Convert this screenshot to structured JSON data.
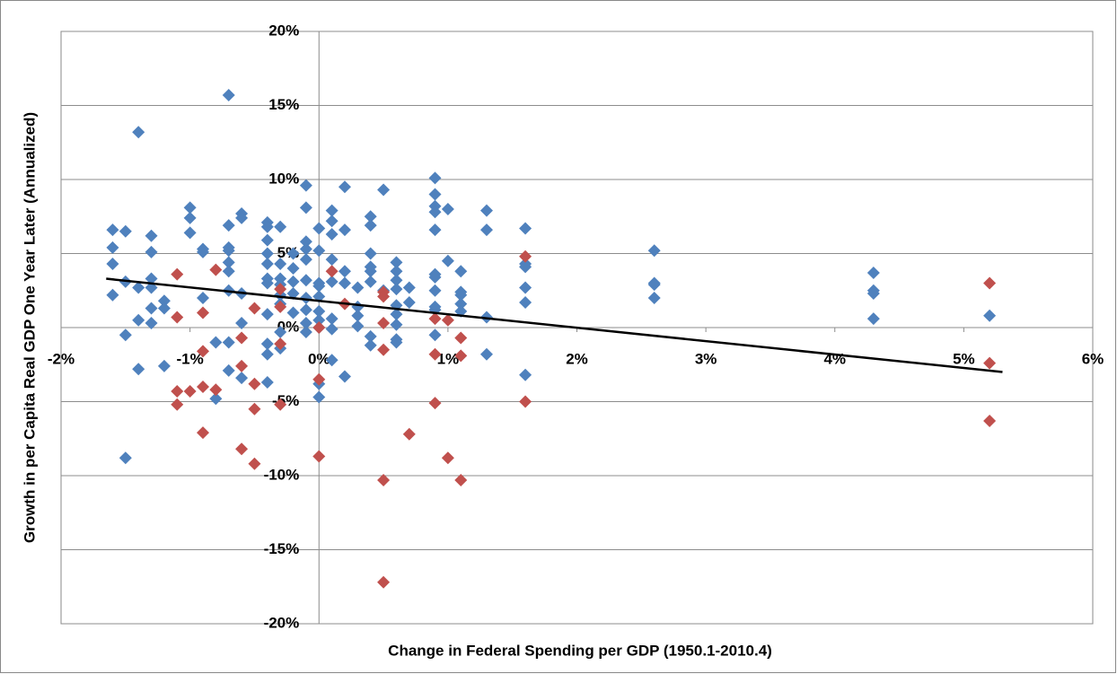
{
  "chart_data": {
    "type": "scatter",
    "x_label": "Change in Federal Spending per GDP (1950.1-2010.4)",
    "y_label": "Growth in per Capita Real GDP One Year Later (Annualized)",
    "xlim": [
      -2,
      6
    ],
    "ylim": [
      -20,
      20
    ],
    "xticks": [
      {
        "value": -2,
        "label": "-2%"
      },
      {
        "value": -1,
        "label": "-1%"
      },
      {
        "value": 0,
        "label": "0%"
      },
      {
        "value": 1,
        "label": "1%"
      },
      {
        "value": 2,
        "label": "2%"
      },
      {
        "value": 3,
        "label": "3%"
      },
      {
        "value": 4,
        "label": "4%"
      },
      {
        "value": 5,
        "label": "5%"
      },
      {
        "value": 6,
        "label": "6%"
      }
    ],
    "yticks": [
      {
        "value": -20,
        "label": "-20%"
      },
      {
        "value": -15,
        "label": "-15%"
      },
      {
        "value": -10,
        "label": "-10%"
      },
      {
        "value": -5,
        "label": "-5%"
      },
      {
        "value": 0,
        "label": "0%"
      },
      {
        "value": 5,
        "label": "5%"
      },
      {
        "value": 10,
        "label": "10%"
      },
      {
        "value": 15,
        "label": "15%"
      },
      {
        "value": 20,
        "label": "20%"
      }
    ],
    "grid": true,
    "series": [
      {
        "color": "#4f81bd",
        "x": [
          -1.6,
          -1.6,
          -1.6,
          -1.6,
          -1.5,
          -1.5,
          -1.5,
          -1.5,
          -1.4,
          -1.4,
          -1.4,
          -1.4,
          -1.3,
          -1.3,
          -1.3,
          -1.3,
          -1.3,
          -1.3,
          -1.2,
          -1.2,
          -1.2,
          -1.0,
          -1.0,
          -1.0,
          -0.9,
          -0.9,
          -0.9,
          -0.8,
          -0.8,
          -0.7,
          -0.7,
          -0.7,
          -0.7,
          -0.7,
          -0.7,
          -0.7,
          -0.7,
          -0.7,
          -0.6,
          -0.6,
          -0.6,
          -0.6,
          -0.6,
          -0.4,
          -0.4,
          -0.4,
          -0.4,
          -0.4,
          -0.4,
          -0.4,
          -0.4,
          -0.4,
          -0.4,
          -0.4,
          -0.3,
          -0.3,
          -0.3,
          -0.3,
          -0.3,
          -0.3,
          -0.3,
          -0.3,
          -0.2,
          -0.2,
          -0.2,
          -0.2,
          -0.2,
          -0.1,
          -0.1,
          -0.1,
          -0.1,
          -0.1,
          -0.1,
          -0.1,
          -0.1,
          -0.1,
          -0.1,
          0.0,
          0.0,
          0.0,
          0.0,
          0.0,
          0.0,
          0.0,
          0.0,
          0.0,
          0.0,
          0.1,
          0.1,
          0.1,
          0.1,
          0.1,
          0.1,
          0.1,
          0.1,
          0.2,
          0.2,
          0.2,
          0.2,
          0.2,
          0.3,
          0.3,
          0.3,
          0.3,
          0.4,
          0.4,
          0.4,
          0.4,
          0.4,
          0.4,
          0.4,
          0.4,
          0.5,
          0.5,
          0.6,
          0.6,
          0.6,
          0.6,
          0.6,
          0.6,
          0.6,
          0.6,
          0.6,
          0.7,
          0.7,
          0.9,
          0.9,
          0.9,
          0.9,
          0.9,
          0.9,
          0.9,
          0.9,
          0.9,
          0.9,
          0.9,
          1.0,
          1.0,
          1.1,
          1.1,
          1.1,
          1.1,
          1.1,
          1.3,
          1.3,
          1.3,
          1.3,
          1.6,
          1.6,
          1.6,
          1.6,
          1.6,
          1.6,
          2.6,
          2.6,
          2.6,
          2.6,
          4.3,
          4.3,
          4.3,
          4.3,
          5.2
        ],
        "y": [
          6.6,
          5.4,
          4.3,
          2.2,
          6.5,
          3.1,
          -0.5,
          -8.8,
          13.2,
          2.7,
          0.5,
          -2.8,
          6.2,
          5.1,
          3.3,
          2.7,
          1.3,
          0.3,
          1.8,
          1.3,
          -2.6,
          8.1,
          7.4,
          6.4,
          5.3,
          5.1,
          2.0,
          -1.0,
          -4.8,
          15.7,
          6.9,
          5.4,
          5.2,
          4.4,
          3.8,
          2.5,
          -1.0,
          -2.9,
          7.7,
          7.4,
          2.3,
          0.3,
          -3.4,
          7.1,
          6.8,
          5.9,
          5.0,
          4.3,
          3.3,
          3.0,
          0.9,
          -1.1,
          -1.8,
          -3.7,
          6.8,
          4.3,
          3.3,
          2.9,
          2.2,
          1.6,
          -0.3,
          -1.4,
          5.0,
          4.0,
          3.1,
          2.3,
          1.0,
          9.6,
          8.1,
          5.8,
          5.3,
          4.6,
          3.2,
          2.0,
          1.2,
          0.3,
          -0.3,
          6.7,
          5.2,
          3.0,
          2.8,
          2.1,
          1.1,
          0.5,
          0.0,
          -3.8,
          -4.7,
          7.9,
          7.2,
          6.3,
          4.6,
          3.1,
          0.6,
          -0.1,
          -2.2,
          9.5,
          6.6,
          3.8,
          3.0,
          -3.3,
          2.7,
          1.4,
          0.8,
          0.1,
          7.5,
          6.9,
          5.0,
          4.1,
          3.8,
          3.1,
          -0.6,
          -1.2,
          9.3,
          2.5,
          4.4,
          3.8,
          3.2,
          2.6,
          1.5,
          0.9,
          0.2,
          -0.8,
          -1.0,
          2.7,
          1.7,
          10.1,
          9.0,
          8.2,
          7.8,
          6.6,
          3.6,
          3.4,
          2.5,
          1.4,
          1.2,
          -0.5,
          8.0,
          4.5,
          3.8,
          2.4,
          2.2,
          1.6,
          1.1,
          7.9,
          6.6,
          0.7,
          -1.8,
          6.7,
          4.3,
          4.1,
          2.7,
          1.7,
          -3.2,
          5.2,
          3.0,
          2.9,
          2.0,
          3.7,
          2.5,
          2.3,
          0.6,
          0.8
        ]
      },
      {
        "color": "#c0504d",
        "x": [
          -1.1,
          -1.1,
          -1.1,
          -1.1,
          -1.0,
          -0.9,
          -0.9,
          -0.9,
          -0.9,
          -0.8,
          -0.8,
          -0.6,
          -0.6,
          -0.6,
          -0.5,
          -0.5,
          -0.5,
          -0.5,
          -0.3,
          -0.3,
          -0.3,
          -0.3,
          0.0,
          0.0,
          0.0,
          0.1,
          0.2,
          0.5,
          0.5,
          0.5,
          0.5,
          0.5,
          0.5,
          0.7,
          0.9,
          0.9,
          0.9,
          1.0,
          1.0,
          1.1,
          1.1,
          1.1,
          1.6,
          1.6,
          5.2,
          5.2,
          5.2
        ],
        "y": [
          3.6,
          0.7,
          -4.3,
          -5.2,
          -4.3,
          1.0,
          -1.6,
          -4.0,
          -7.1,
          3.9,
          -4.2,
          -0.7,
          -2.6,
          -8.2,
          1.3,
          -3.8,
          -5.5,
          -9.2,
          2.6,
          1.4,
          -1.1,
          -5.2,
          0.0,
          -3.5,
          -8.7,
          3.8,
          1.6,
          2.4,
          2.1,
          0.3,
          -1.5,
          -10.3,
          -17.2,
          -7.2,
          0.6,
          -1.8,
          -5.1,
          0.5,
          -8.8,
          -0.7,
          -10.3,
          -1.9,
          4.8,
          -5.0,
          3.0,
          -2.4,
          -6.3
        ]
      }
    ],
    "trendline": {
      "color": "#000000",
      "x": [
        -1.65,
        5.3
      ],
      "y": [
        3.3,
        -3.0
      ]
    }
  }
}
